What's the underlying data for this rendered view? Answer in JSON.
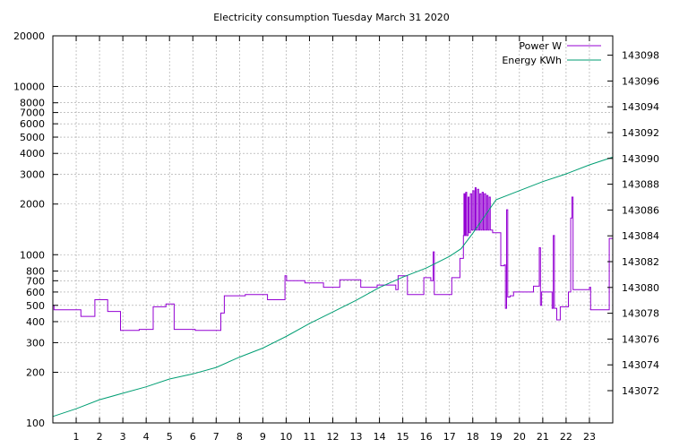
{
  "chart_data": {
    "type": "line",
    "title": "Electricity consumption Tuesday March 31 2020",
    "x_ticks": [
      1,
      2,
      3,
      4,
      5,
      6,
      7,
      8,
      9,
      10,
      11,
      12,
      13,
      14,
      15,
      16,
      17,
      18,
      19,
      20,
      21,
      22,
      23
    ],
    "xlim": [
      0,
      24
    ],
    "y_left": {
      "scale": "log",
      "range": [
        100,
        20000
      ],
      "tick_values": [
        100,
        200,
        300,
        400,
        500,
        600,
        700,
        800,
        1000,
        2000,
        3000,
        4000,
        5000,
        6000,
        7000,
        8000,
        10000,
        20000
      ],
      "tick_labels": [
        "100",
        "200",
        "300",
        "400",
        "500",
        "600",
        "700",
        "800",
        "1000",
        "2000",
        "3000",
        "4000",
        "5000",
        "6000",
        "7000",
        "8000",
        "10000",
        "20000"
      ]
    },
    "y_right": {
      "scale": "linear",
      "range": [
        143069.5,
        143099.5
      ],
      "tick_values": [
        143072,
        143074,
        143076,
        143078,
        143080,
        143082,
        143084,
        143086,
        143088,
        143090,
        143092,
        143094,
        143096,
        143098
      ],
      "tick_labels": [
        "143072",
        "143074",
        "143076",
        "143078",
        "143080",
        "143082",
        "143084",
        "143086",
        "143088",
        "143090",
        "143092",
        "143094",
        "143096",
        "143098"
      ]
    },
    "grid": true,
    "legend_position": "top-right",
    "series": [
      {
        "name": "Power W",
        "axis": "left",
        "color": "#9400d3",
        "steps": [
          [
            0,
            500
          ],
          [
            0.05,
            470
          ],
          [
            1.2,
            430
          ],
          [
            1.8,
            540
          ],
          [
            2.35,
            460
          ],
          [
            2.9,
            355
          ],
          [
            3.7,
            360
          ],
          [
            4.3,
            490
          ],
          [
            4.85,
            510
          ],
          [
            5.2,
            360
          ],
          [
            6.1,
            355
          ],
          [
            7.2,
            450
          ],
          [
            7.35,
            570
          ],
          [
            8.25,
            580
          ],
          [
            9.2,
            540
          ],
          [
            9.95,
            750
          ],
          [
            10.02,
            700
          ],
          [
            10.8,
            680
          ],
          [
            11.6,
            640
          ],
          [
            12.3,
            710
          ],
          [
            13.2,
            640
          ],
          [
            13.9,
            660
          ],
          [
            14.7,
            620
          ],
          [
            14.8,
            750
          ],
          [
            15.2,
            580
          ],
          [
            15.9,
            730
          ],
          [
            16.2,
            700
          ],
          [
            16.3,
            1040
          ],
          [
            16.35,
            580
          ],
          [
            17.1,
            730
          ],
          [
            17.45,
            950
          ],
          [
            17.6,
            1300
          ],
          [
            17.62,
            2300
          ],
          [
            17.66,
            1300
          ],
          [
            17.7,
            2350
          ],
          [
            17.74,
            1300
          ],
          [
            17.8,
            2200
          ],
          [
            17.84,
            1350
          ],
          [
            17.9,
            2300
          ],
          [
            17.95,
            1400
          ],
          [
            18.0,
            2400
          ],
          [
            18.05,
            1400
          ],
          [
            18.1,
            2500
          ],
          [
            18.14,
            1400
          ],
          [
            18.2,
            2450
          ],
          [
            18.25,
            1400
          ],
          [
            18.3,
            2300
          ],
          [
            18.35,
            1400
          ],
          [
            18.4,
            2350
          ],
          [
            18.45,
            1400
          ],
          [
            18.5,
            2300
          ],
          [
            18.55,
            1400
          ],
          [
            18.6,
            2250
          ],
          [
            18.65,
            1400
          ],
          [
            18.7,
            2200
          ],
          [
            18.75,
            1400
          ],
          [
            18.85,
            1350
          ],
          [
            19.0,
            1350
          ],
          [
            19.2,
            860
          ],
          [
            19.35,
            870
          ],
          [
            19.4,
            480
          ],
          [
            19.45,
            1850
          ],
          [
            19.5,
            560
          ],
          [
            19.6,
            570
          ],
          [
            19.75,
            600
          ],
          [
            20.6,
            650
          ],
          [
            20.85,
            1100
          ],
          [
            20.9,
            500
          ],
          [
            20.95,
            600
          ],
          [
            21.4,
            480
          ],
          [
            21.45,
            1300
          ],
          [
            21.5,
            480
          ],
          [
            21.6,
            410
          ],
          [
            21.75,
            490
          ],
          [
            22.1,
            600
          ],
          [
            22.2,
            1650
          ],
          [
            22.25,
            2200
          ],
          [
            22.3,
            620
          ],
          [
            23.0,
            640
          ],
          [
            23.05,
            470
          ],
          [
            23.85,
            1250
          ],
          [
            24.0,
            1250
          ]
        ]
      },
      {
        "name": "Energy KWh",
        "axis": "right",
        "color": "#009e73",
        "points": [
          [
            0,
            143070.0
          ],
          [
            1,
            143070.6
          ],
          [
            2,
            143071.3
          ],
          [
            3,
            143071.8
          ],
          [
            4,
            143072.3
          ],
          [
            5,
            143072.9
          ],
          [
            6,
            143073.3
          ],
          [
            7,
            143073.8
          ],
          [
            8,
            143074.6
          ],
          [
            9,
            143075.3
          ],
          [
            10,
            143076.2
          ],
          [
            11,
            143077.2
          ],
          [
            12,
            143078.1
          ],
          [
            13,
            143079.0
          ],
          [
            14,
            143080.0
          ],
          [
            15,
            143080.8
          ],
          [
            16,
            143081.5
          ],
          [
            17,
            143082.4
          ],
          [
            17.5,
            143083.0
          ],
          [
            18,
            143084.2
          ],
          [
            18.5,
            143085.5
          ],
          [
            19,
            143086.8
          ],
          [
            20,
            143087.5
          ],
          [
            21,
            143088.2
          ],
          [
            22,
            143088.8
          ],
          [
            23,
            143089.5
          ],
          [
            24,
            143090.1
          ]
        ]
      }
    ]
  }
}
